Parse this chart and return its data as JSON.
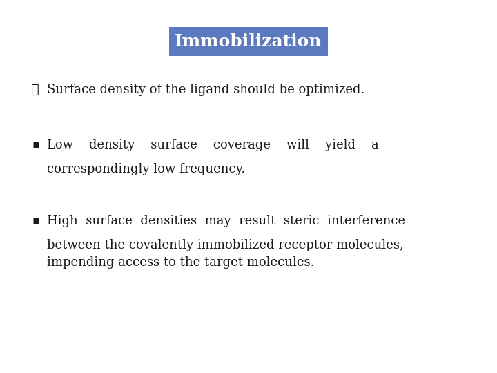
{
  "title": "Immobilization",
  "title_bg_color": "#5b7abf",
  "title_text_color": "#ffffff",
  "title_fontsize": 18,
  "background_color": "#ffffff",
  "bullet1_symbol": "❖",
  "bullet1_text": "Surface density of the ligand should be optimized.",
  "bullet2_symbol": "▪",
  "bullet2_line1": "Low    density    surface    coverage    will    yield    a",
  "bullet2_line2": "correspondingly low frequency.",
  "bullet3_symbol": "▪",
  "bullet3_line1": "High  surface  densities  may  result  steric  interference",
  "bullet3_line2": "between the covalently immobilized receptor molecules,",
  "bullet3_line3": "impending access to the target molecules.",
  "text_color": "#1a1a1a",
  "body_fontsize": 13,
  "font_family": "DejaVu Serif",
  "fig_width": 7.2,
  "fig_height": 5.4,
  "dpi": 100
}
